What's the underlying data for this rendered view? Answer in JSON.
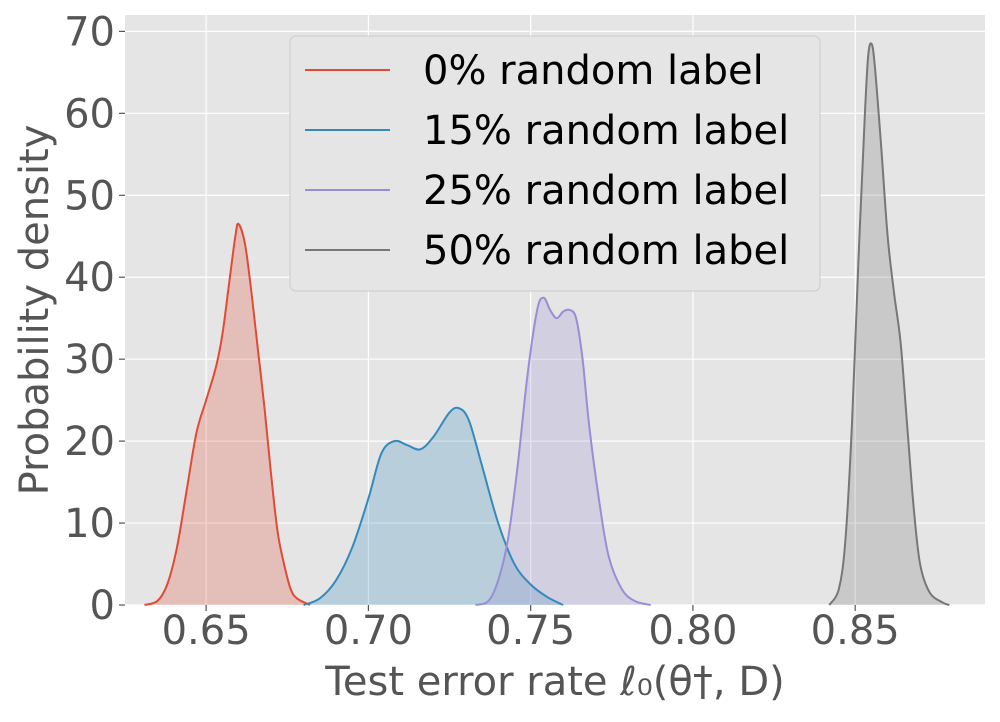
{
  "chart_data": {
    "type": "area",
    "xlabel": "Test error rate ℓ₀(θ†, D)",
    "ylabel": "Probability density",
    "xlim": [
      0.625,
      0.89
    ],
    "ylim": [
      0,
      72
    ],
    "x_ticks": [
      0.65,
      0.7,
      0.75,
      0.8,
      0.85
    ],
    "x_tick_labels": [
      "0.65",
      "0.70",
      "0.75",
      "0.80",
      "0.85"
    ],
    "y_ticks": [
      0,
      10,
      20,
      30,
      40,
      50,
      60,
      70
    ],
    "y_tick_labels": [
      "0",
      "10",
      "20",
      "30",
      "40",
      "50",
      "60",
      "70"
    ],
    "grid": true,
    "legend_position": "top-center",
    "series": [
      {
        "name": "0% random label",
        "color": "#E24A33",
        "points": [
          [
            0.631,
            0
          ],
          [
            0.635,
            0.5
          ],
          [
            0.638,
            2.5
          ],
          [
            0.641,
            7
          ],
          [
            0.644,
            14
          ],
          [
            0.647,
            21
          ],
          [
            0.65,
            25
          ],
          [
            0.653,
            29
          ],
          [
            0.655,
            33
          ],
          [
            0.657,
            39
          ],
          [
            0.659,
            45
          ],
          [
            0.66,
            46.5
          ],
          [
            0.662,
            44
          ],
          [
            0.664,
            38
          ],
          [
            0.666,
            31
          ],
          [
            0.668,
            24
          ],
          [
            0.67,
            16
          ],
          [
            0.672,
            9
          ],
          [
            0.674,
            5
          ],
          [
            0.676,
            2
          ],
          [
            0.678,
            0.8
          ],
          [
            0.682,
            0
          ]
        ]
      },
      {
        "name": "15% random label",
        "color": "#348ABD",
        "points": [
          [
            0.68,
            0
          ],
          [
            0.685,
            0.8
          ],
          [
            0.69,
            3
          ],
          [
            0.695,
            7
          ],
          [
            0.7,
            13
          ],
          [
            0.704,
            18.5
          ],
          [
            0.708,
            20
          ],
          [
            0.712,
            19.5
          ],
          [
            0.716,
            19
          ],
          [
            0.72,
            20.5
          ],
          [
            0.725,
            23.5
          ],
          [
            0.728,
            24
          ],
          [
            0.731,
            22.5
          ],
          [
            0.735,
            17
          ],
          [
            0.74,
            10
          ],
          [
            0.745,
            5
          ],
          [
            0.75,
            2.5
          ],
          [
            0.755,
            1
          ],
          [
            0.76,
            0
          ]
        ]
      },
      {
        "name": "25% random label",
        "color": "#988ED5",
        "points": [
          [
            0.733,
            0
          ],
          [
            0.737,
            0.5
          ],
          [
            0.74,
            3
          ],
          [
            0.743,
            8
          ],
          [
            0.746,
            17
          ],
          [
            0.749,
            28
          ],
          [
            0.752,
            36
          ],
          [
            0.754,
            37.5
          ],
          [
            0.756,
            36
          ],
          [
            0.758,
            35
          ],
          [
            0.76,
            35.8
          ],
          [
            0.762,
            36
          ],
          [
            0.764,
            35
          ],
          [
            0.766,
            30
          ],
          [
            0.768,
            22
          ],
          [
            0.771,
            13
          ],
          [
            0.774,
            6
          ],
          [
            0.778,
            2
          ],
          [
            0.782,
            0.5
          ],
          [
            0.787,
            0
          ]
        ]
      },
      {
        "name": "50% random label",
        "color": "#777777",
        "points": [
          [
            0.842,
            0
          ],
          [
            0.845,
            2
          ],
          [
            0.847,
            8
          ],
          [
            0.849,
            22
          ],
          [
            0.851,
            42
          ],
          [
            0.853,
            60
          ],
          [
            0.854,
            67
          ],
          [
            0.855,
            68.5
          ],
          [
            0.856,
            66
          ],
          [
            0.858,
            56
          ],
          [
            0.86,
            45
          ],
          [
            0.862,
            38
          ],
          [
            0.864,
            32
          ],
          [
            0.866,
            22
          ],
          [
            0.868,
            12
          ],
          [
            0.87,
            5
          ],
          [
            0.873,
            1.5
          ],
          [
            0.877,
            0.3
          ],
          [
            0.879,
            0
          ]
        ]
      }
    ]
  }
}
